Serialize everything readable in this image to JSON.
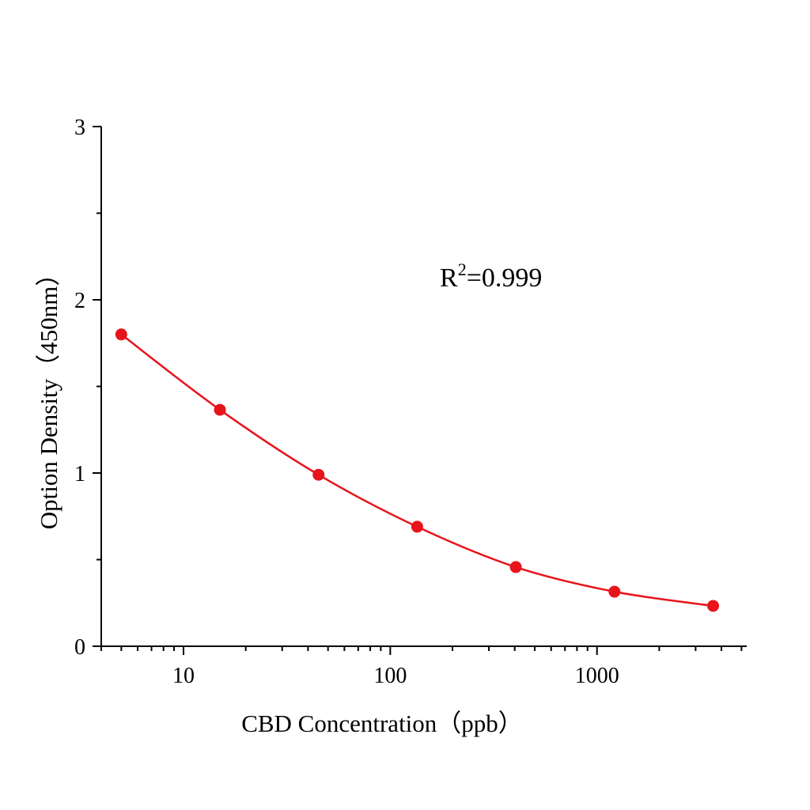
{
  "chart_data": {
    "type": "line",
    "xlabel": "CBD Concentration（ppb）",
    "ylabel": "Option Density（450nm）",
    "xscale": "log",
    "xlim": [
      4,
      5300
    ],
    "ylim": [
      0,
      3
    ],
    "x_ticks": [
      10,
      100,
      1000
    ],
    "x_tick_labels": [
      "10",
      "100",
      "1000"
    ],
    "y_ticks": [
      0,
      1,
      2,
      3
    ],
    "y_tick_labels": [
      "0",
      "1",
      "2",
      "3"
    ],
    "y_minor_ticks": [
      0.5,
      1.5,
      2.5
    ],
    "grid": false,
    "annotation": {
      "text_base": "R",
      "text_sup": "2",
      "text_rest": "=0.999"
    },
    "series": [
      {
        "color": "#e8141c",
        "marker": "circle",
        "x": [
          5,
          15,
          45,
          135,
          405,
          1215,
          3645
        ],
        "y": [
          1.8,
          1.365,
          0.99,
          0.69,
          0.457,
          0.315,
          0.233
        ]
      }
    ]
  }
}
